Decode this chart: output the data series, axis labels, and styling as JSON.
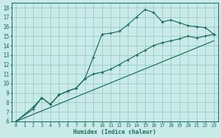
{
  "xlabel": "Humidex (Indice chaleur)",
  "bg_color": "#c8ebe8",
  "grid_color": "#a0cdc8",
  "line_color": "#1a6b5e",
  "xlim": [
    -0.5,
    23.5
  ],
  "ylim": [
    6,
    18.5
  ],
  "xticks": [
    0,
    1,
    2,
    3,
    4,
    5,
    6,
    7,
    8,
    9,
    10,
    11,
    12,
    13,
    14,
    15,
    16,
    17,
    18,
    19,
    20,
    21,
    22,
    23
  ],
  "yticks": [
    6,
    7,
    8,
    9,
    10,
    11,
    12,
    13,
    14,
    15,
    16,
    17,
    18
  ],
  "line1_x": [
    0,
    2,
    3,
    4,
    5,
    6,
    7,
    8,
    9,
    10,
    11,
    12,
    13,
    14,
    15,
    16,
    17,
    18,
    19,
    20,
    21,
    22,
    23
  ],
  "line1_y": [
    6,
    7.5,
    8.5,
    7.8,
    8.8,
    9.2,
    9.5,
    10.5,
    12.8,
    15.2,
    15.3,
    15.5,
    16.2,
    17.0,
    17.8,
    17.5,
    16.5,
    16.7,
    16.4,
    16.1,
    16.0,
    15.9,
    15.2
  ],
  "line2_x": [
    0,
    2,
    3,
    4,
    5,
    6,
    7,
    8,
    9,
    10,
    11,
    12,
    13,
    14,
    15,
    16,
    17,
    18,
    19,
    20,
    21,
    22,
    23
  ],
  "line2_y": [
    6,
    7.3,
    8.5,
    7.8,
    8.8,
    9.2,
    9.5,
    10.5,
    11.0,
    11.2,
    11.5,
    12.0,
    12.5,
    13.0,
    13.5,
    14.0,
    14.3,
    14.5,
    14.7,
    15.0,
    14.8,
    15.0,
    15.2
  ],
  "line3_x": [
    0,
    23
  ],
  "line3_y": [
    6,
    14.5
  ]
}
